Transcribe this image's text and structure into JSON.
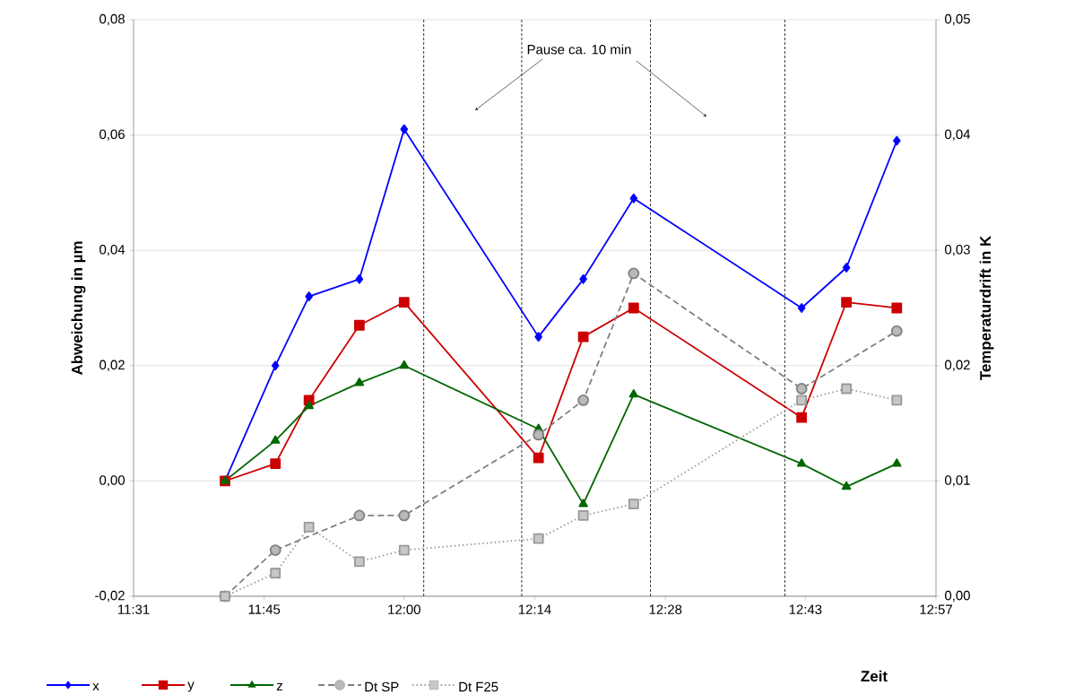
{
  "chart_data": {
    "type": "line",
    "xlabel": "Zeit",
    "ylabel": "Abweichung in µm",
    "y2label": "Temperaturdrift in K",
    "x": [
      11.68,
      11.77,
      11.83,
      11.92,
      12.0,
      12.24,
      12.32,
      12.41,
      12.71,
      12.79,
      12.88
    ],
    "series": [
      {
        "name": "x",
        "color": "#0000ff",
        "marker": "diamond",
        "line_style": "solid",
        "values": [
          0,
          0.02,
          0.032,
          0.035,
          0.061,
          0.025,
          0.035,
          0.049,
          0.03,
          0.037,
          0.059
        ]
      },
      {
        "name": "y",
        "color": "#cc0000",
        "marker": "square",
        "line_style": "solid",
        "values": [
          0,
          0.003,
          0.014,
          0.027,
          0.031,
          0.004,
          0.025,
          0.03,
          0.011,
          0.031,
          0.03
        ]
      },
      {
        "name": "z",
        "color": "#006600",
        "marker": "triangle",
        "line_style": "solid",
        "values": [
          0,
          0.007,
          0.013,
          0.017,
          0.02,
          0.009,
          -0.004,
          0.015,
          0.003,
          -0.001,
          0.003
        ]
      },
      {
        "name": "Dt SP",
        "color": "#808080",
        "marker": "circle",
        "line_style": "dashed",
        "axis": "y2",
        "values": [
          0,
          0.004,
          null,
          0.007,
          0.007,
          0.014,
          0.017,
          0.028,
          0.018,
          null,
          0.023
        ]
      },
      {
        "name": "Dt F25",
        "color": "#999999",
        "marker": "square",
        "line_style": "dotted",
        "axis": "y2",
        "values": [
          0,
          0.002,
          0.006,
          0.003,
          0.004,
          0.005,
          0.007,
          0.008,
          0.017,
          0.018,
          0.017
        ]
      }
    ],
    "xlim": [
      11.5167,
      12.95
    ],
    "xticks": [
      {
        "value": 11.5167,
        "label": "11:31"
      },
      {
        "value": 11.75,
        "label": "11:45"
      },
      {
        "value": 12.0,
        "label": "12:00"
      },
      {
        "value": 12.2333,
        "label": "12:14"
      },
      {
        "value": 12.4667,
        "label": "12:28"
      },
      {
        "value": 12.7167,
        "label": "12:43"
      },
      {
        "value": 12.95,
        "label": "12:57"
      }
    ],
    "ylim": [
      -0.02,
      0.08
    ],
    "yticks": [
      {
        "value": -0.02,
        "label": "-0,02"
      },
      {
        "value": 0,
        "label": "0,00"
      },
      {
        "value": 0.02,
        "label": "0,02"
      },
      {
        "value": 0.04,
        "label": "0,04"
      },
      {
        "value": 0.06,
        "label": "0,06"
      },
      {
        "value": 0.08,
        "label": "0,08"
      }
    ],
    "y2lim": [
      0,
      0.05
    ],
    "y2ticks": [
      {
        "value": 0,
        "label": "0,00"
      },
      {
        "value": 0.01,
        "label": "0,01"
      },
      {
        "value": 0.02,
        "label": "0,02"
      },
      {
        "value": 0.03,
        "label": "0,03"
      },
      {
        "value": 0.04,
        "label": "0,04"
      },
      {
        "value": 0.05,
        "label": "0,05"
      }
    ],
    "ref_lines": [
      {
        "axis": "x",
        "value": 12.035,
        "color": "#000000",
        "line_style": "dashed"
      },
      {
        "axis": "x",
        "value": 12.21,
        "color": "#000000",
        "line_style": "dashed"
      },
      {
        "axis": "x",
        "value": 12.44,
        "color": "#000000",
        "line_style": "dashed"
      },
      {
        "axis": "x",
        "value": 12.68,
        "color": "#000000",
        "line_style": "dashed"
      }
    ],
    "annotations": [
      "Pause ca. 10 min"
    ],
    "grid": "y",
    "legend": "bottom"
  }
}
